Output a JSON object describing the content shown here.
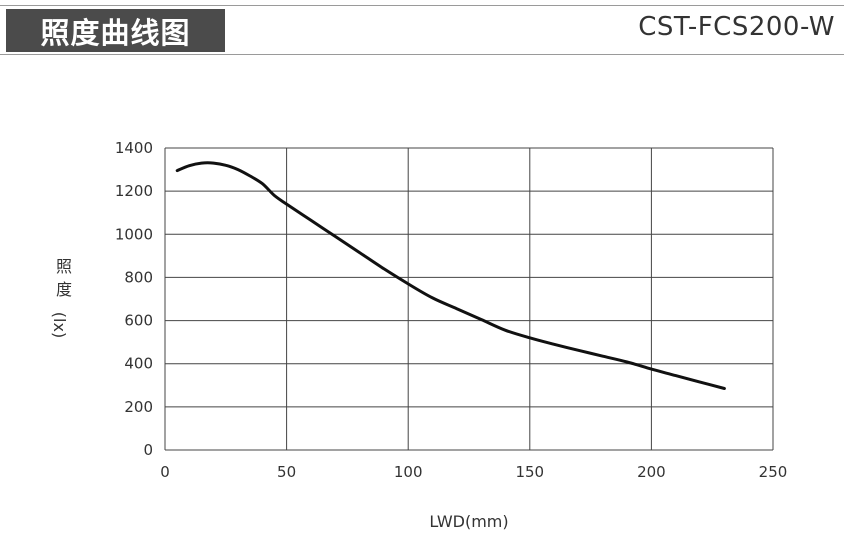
{
  "header": {
    "title": "照度曲线图",
    "model": "CST-FCS200-W"
  },
  "chart_data": {
    "type": "line",
    "title": "",
    "xlabel": "LWD(mm)",
    "ylabel_chars": [
      "照",
      "度"
    ],
    "ylabel_unit": "(lx)",
    "xlim": [
      0,
      250
    ],
    "ylim": [
      0,
      1400
    ],
    "xticks": [
      0,
      50,
      100,
      150,
      200,
      250
    ],
    "yticks": [
      0,
      200,
      400,
      600,
      800,
      1000,
      1200,
      1400
    ],
    "grid": true,
    "series": [
      {
        "color": "#111111",
        "x": [
          5,
          10,
          15,
          20,
          25,
          30,
          35,
          40,
          45,
          50,
          60,
          70,
          80,
          90,
          100,
          110,
          120,
          130,
          140,
          150,
          160,
          170,
          180,
          190,
          200,
          210,
          220,
          230
        ],
        "y": [
          1295,
          1318,
          1330,
          1330,
          1320,
          1300,
          1270,
          1235,
          1180,
          1140,
          1065,
          990,
          915,
          840,
          770,
          705,
          655,
          605,
          555,
          520,
          490,
          462,
          435,
          408,
          375,
          345,
          315,
          285
        ]
      }
    ]
  }
}
